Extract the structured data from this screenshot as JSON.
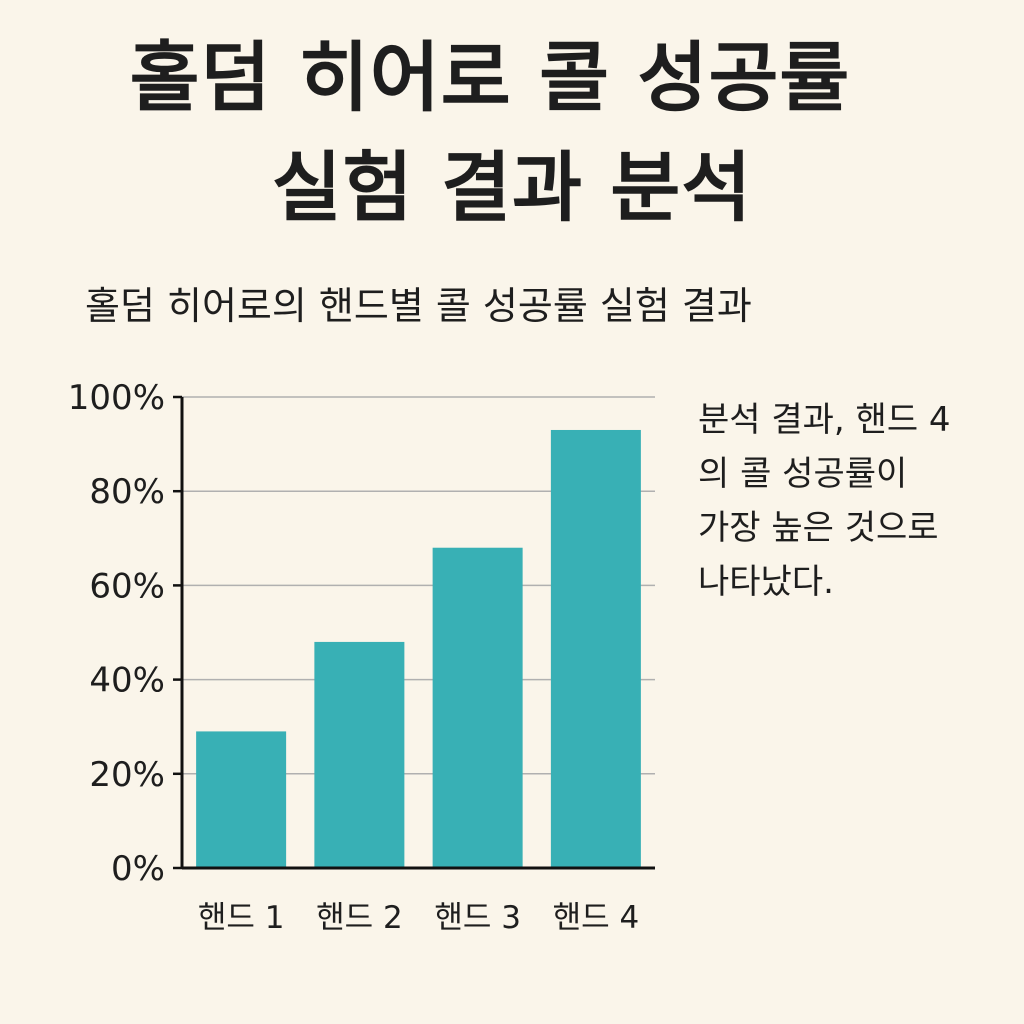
{
  "title": {
    "line1": "홀덤 히어로 콜 성공률",
    "line2": "실험 결과 분석"
  },
  "annotation": {
    "lines": [
      "분석 결과, 핸드 4",
      "의 콜 성공률이",
      "가장 높은 것으로",
      "나타났다."
    ]
  },
  "colors": {
    "bar": "#38b0b5",
    "background": "#faf5ea",
    "grid": "#b0b0b0",
    "axis": "#111111"
  },
  "chart_data": {
    "type": "bar",
    "title": "홀덤 히어로의 핸드별 콜 성공률 실험 결과",
    "xlabel": "",
    "ylabel": "",
    "categories": [
      "핸드 1",
      "핸드 2",
      "핸드 3",
      "핸드 4"
    ],
    "values": [
      29,
      48,
      68,
      93
    ],
    "ylim": [
      0,
      100
    ],
    "yticks": [
      0,
      20,
      40,
      60,
      80,
      100
    ],
    "ytick_labels": [
      "0%",
      "20%",
      "40%",
      "60%",
      "80%",
      "100%"
    ],
    "grid": true,
    "legend": "none"
  }
}
